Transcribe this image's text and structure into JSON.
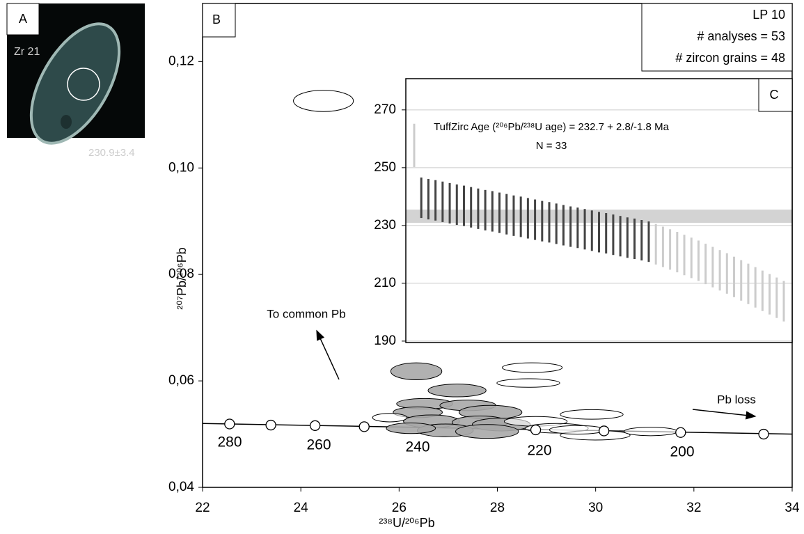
{
  "panel_a": {
    "label": "A",
    "grain": "Zr 21",
    "age": "230.9±3.4"
  },
  "chart_data": [
    {
      "type": "concordia",
      "panel": "B",
      "x_label": "²³⁸U/²⁰⁶Pb",
      "y_label": "²⁰⁷Pb/²⁰⁶Pb",
      "xlim": [
        22,
        34
      ],
      "ylim": [
        0.04,
        0.1309
      ],
      "xticks": [
        22,
        24,
        26,
        28,
        30,
        32,
        34
      ],
      "yticks": [
        {
          "value": 0.04,
          "label": "0,04"
        },
        {
          "value": 0.06,
          "label": "0,06"
        },
        {
          "value": 0.08,
          "label": "0,08"
        },
        {
          "value": 0.1,
          "label": "0,10"
        },
        {
          "value": 0.12,
          "label": "0,12"
        }
      ],
      "info": [
        "LP 10",
        "# analyses = 53",
        "# zircon grains = 48"
      ],
      "annotations": [
        "To common Pb",
        "Pb loss"
      ],
      "concordia": {
        "x": [
          22,
          34
        ],
        "y": [
          0.052,
          0.05
        ]
      },
      "age_markers": {
        "x": [
          22.55,
          23.39,
          24.29,
          25.29,
          28.78,
          30.17,
          31.73,
          33.42
        ],
        "y": [
          0.0519,
          0.0517,
          0.0516,
          0.0514,
          0.0508,
          0.0506,
          0.0503,
          0.05
        ]
      },
      "age_labels": [
        280,
        260,
        240,
        220,
        200
      ],
      "ellipses": {
        "x": [
          24.46,
          26.35,
          27.18,
          28.71,
          28.63,
          26.52,
          27.4,
          27.86,
          26.38,
          26.66,
          27.65,
          28.08,
          26.94,
          27.79,
          26.24,
          25.81,
          28.78,
          29.21,
          29.92,
          29.99,
          31.12,
          29.63
        ],
        "y": [
          0.1126,
          0.0618,
          0.0582,
          0.0625,
          0.0596,
          0.0557,
          0.0554,
          0.0541,
          0.0541,
          0.0524,
          0.0522,
          0.0518,
          0.0507,
          0.0505,
          0.0511,
          0.0531,
          0.0524,
          0.0511,
          0.0537,
          0.0498,
          0.0505,
          0.0508
        ],
        "dx": [
          0.61,
          0.52,
          0.59,
          0.61,
          0.64,
          0.57,
          0.57,
          0.64,
          0.5,
          0.57,
          0.57,
          0.59,
          0.57,
          0.64,
          0.5,
          0.35,
          0.64,
          0.64,
          0.64,
          0.71,
          0.54,
          0.57
        ],
        "dy": [
          0.002,
          0.0016,
          0.0012,
          0.0009,
          0.0008,
          0.001,
          0.001,
          0.0013,
          0.001,
          0.0012,
          0.0012,
          0.0012,
          0.0012,
          0.0013,
          0.001,
          0.0008,
          0.0009,
          0.0009,
          0.0009,
          0.0009,
          0.0008,
          0.0008
        ],
        "filled": [
          false,
          true,
          true,
          false,
          false,
          true,
          true,
          true,
          true,
          true,
          true,
          true,
          true,
          true,
          true,
          false,
          false,
          false,
          false,
          false,
          false,
          false
        ]
      },
      "fill_color": "#a9a9a9"
    },
    {
      "type": "errorbar",
      "panel": "C",
      "title": "TuffZirc Age (²⁰⁶Pb/²³⁸U age) = 232.7 + 2.8/-1.8 Ma",
      "subtitle": "N = 33",
      "ylim": [
        189.5,
        280.8
      ],
      "yticks": [
        190,
        210,
        230,
        250,
        270
      ],
      "grid": true,
      "band": [
        230.9,
        235.5
      ],
      "band_color": "#d3d3d3",
      "color": "#444444",
      "reject_color": "#cccccc",
      "high": [
        265.2,
        246.6,
        246.1,
        245.7,
        245.2,
        244.7,
        244.2,
        243.8,
        243.3,
        242.8,
        242.3,
        241.9,
        241.4,
        240.9,
        240.4,
        240.0,
        239.5,
        239.0,
        238.5,
        238.1,
        237.6,
        237.1,
        236.6,
        236.2,
        235.7,
        235.2,
        234.7,
        234.3,
        233.8,
        233.3,
        232.8,
        232.4,
        231.9,
        231.4,
        230.5,
        229.6,
        228.7,
        227.8,
        226.8,
        225.8,
        224.8,
        223.7,
        222.6,
        221.5,
        220.4,
        219.2,
        218.0,
        216.8,
        215.6,
        214.4,
        213.2,
        212.0,
        210.8
      ],
      "low": [
        250.2,
        232.6,
        232.1,
        231.7,
        231.2,
        230.7,
        230.2,
        229.8,
        229.3,
        228.8,
        228.3,
        227.9,
        227.4,
        226.9,
        226.4,
        226.0,
        225.5,
        225.0,
        224.5,
        224.1,
        223.6,
        223.1,
        222.6,
        222.2,
        221.7,
        221.2,
        220.7,
        220.3,
        219.8,
        219.3,
        218.8,
        218.4,
        217.9,
        217.4,
        216.5,
        215.6,
        214.7,
        213.8,
        212.8,
        211.8,
        210.8,
        209.7,
        208.6,
        207.5,
        206.4,
        205.2,
        204.0,
        202.8,
        201.6,
        200.4,
        199.2,
        198.0,
        196.8
      ],
      "used": [
        false,
        true,
        true,
        true,
        true,
        true,
        true,
        true,
        true,
        true,
        true,
        true,
        true,
        true,
        true,
        true,
        true,
        true,
        true,
        true,
        true,
        true,
        true,
        true,
        true,
        true,
        true,
        true,
        true,
        true,
        true,
        true,
        true,
        true,
        false,
        false,
        false,
        false,
        false,
        false,
        false,
        false,
        false,
        false,
        false,
        false,
        false,
        false,
        false,
        false,
        false,
        false,
        false
      ]
    }
  ]
}
